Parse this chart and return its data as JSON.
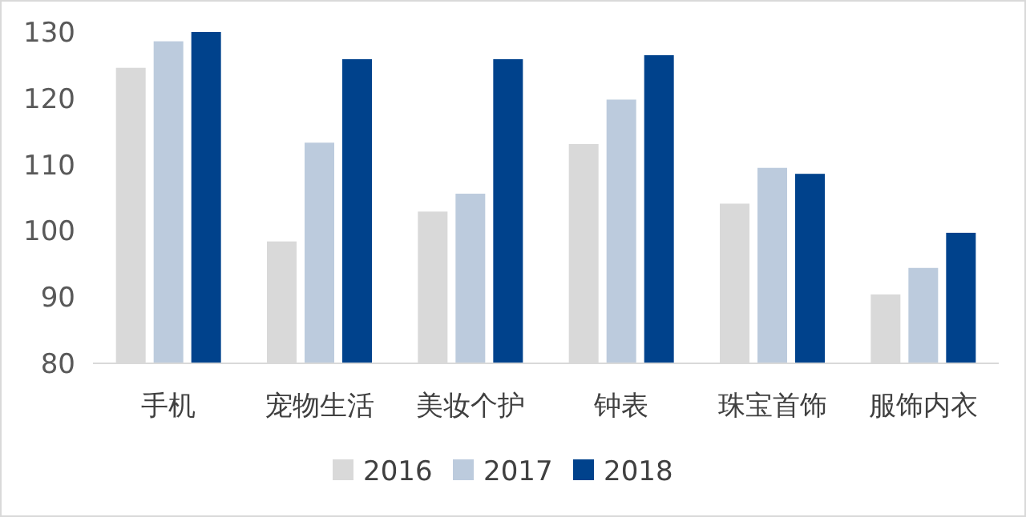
{
  "chart_data": {
    "type": "bar",
    "categories": [
      "手机",
      "宠物生活",
      "美妆个护",
      "钟表",
      "珠宝首饰",
      "服饰内衣"
    ],
    "series": [
      {
        "name": "2016",
        "color": "#d9d9d9",
        "values": [
          124.6,
          98.4,
          102.9,
          113.1,
          104.1,
          90.4
        ]
      },
      {
        "name": "2017",
        "color": "#bccbdd",
        "values": [
          128.6,
          113.3,
          105.6,
          119.8,
          109.5,
          94.4
        ]
      },
      {
        "name": "2018",
        "color": "#00428c",
        "values": [
          130.0,
          125.9,
          125.9,
          126.5,
          108.6,
          99.7
        ]
      }
    ],
    "ylim": [
      80,
      130
    ],
    "yticks": [
      80,
      90,
      100,
      110,
      120,
      130
    ],
    "grid": false,
    "legend": "bottom"
  }
}
